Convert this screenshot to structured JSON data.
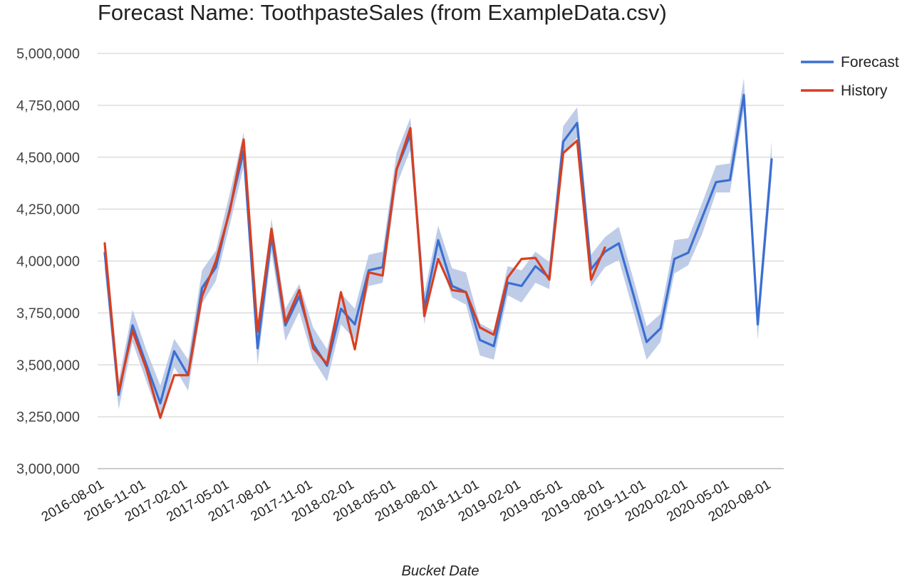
{
  "chart_data": {
    "type": "line",
    "title": "Forecast Name: ToothpasteSales (from ExampleData.csv)",
    "xlabel": "Bucket Date",
    "ylabel": "",
    "ylim": [
      3000000,
      5000000
    ],
    "yticks": [
      3000000,
      3250000,
      3500000,
      3750000,
      4000000,
      4250000,
      4500000,
      4750000,
      5000000
    ],
    "ytick_labels": [
      "3,000,000",
      "3,250,000",
      "3,500,000",
      "3,750,000",
      "4,000,000",
      "4,250,000",
      "4,500,000",
      "4,750,000",
      "5,000,000"
    ],
    "xtick_labels": [
      "2016-08-01",
      "2016-11-01",
      "2017-02-01",
      "2017-05-01",
      "2017-08-01",
      "2017-11-01",
      "2018-02-01",
      "2018-05-01",
      "2018-08-01",
      "2018-11-01",
      "2019-02-01",
      "2019-05-01",
      "2019-08-01",
      "2019-11-01",
      "2020-02-01",
      "2020-05-01",
      "2020-08-01"
    ],
    "x": [
      "2016-08-01",
      "2016-09-01",
      "2016-10-01",
      "2016-11-01",
      "2016-12-01",
      "2017-01-01",
      "2017-02-01",
      "2017-03-01",
      "2017-04-01",
      "2017-05-01",
      "2017-06-01",
      "2017-07-01",
      "2017-08-01",
      "2017-09-01",
      "2017-10-01",
      "2017-11-01",
      "2017-12-01",
      "2018-01-01",
      "2018-02-01",
      "2018-03-01",
      "2018-04-01",
      "2018-05-01",
      "2018-06-01",
      "2018-07-01",
      "2018-08-01",
      "2018-09-01",
      "2018-10-01",
      "2018-11-01",
      "2018-12-01",
      "2019-01-01",
      "2019-02-01",
      "2019-03-01",
      "2019-04-01",
      "2019-05-01",
      "2019-06-01",
      "2019-07-01",
      "2019-08-01",
      "2019-09-01",
      "2019-10-01",
      "2019-11-01",
      "2019-12-01",
      "2020-01-01",
      "2020-02-01",
      "2020-03-01",
      "2020-04-01",
      "2020-05-01",
      "2020-06-01",
      "2020-07-01",
      "2020-08-01"
    ],
    "series": [
      {
        "name": "Forecast",
        "color": "#3b6fd1",
        "values": [
          4040000,
          3355000,
          3690000,
          3500000,
          3315000,
          3565000,
          3450000,
          3870000,
          3970000,
          4250000,
          4530000,
          3580000,
          4120000,
          3690000,
          3830000,
          3600000,
          3495000,
          3770000,
          3695000,
          3955000,
          3970000,
          4440000,
          4610000,
          3770000,
          4100000,
          3880000,
          3850000,
          3620000,
          3590000,
          3895000,
          3880000,
          3975000,
          3920000,
          4575000,
          4665000,
          3960000,
          4045000,
          4085000,
          3850000,
          3610000,
          3675000,
          4010000,
          4040000,
          4210000,
          4380000,
          4390000,
          4800000,
          3695000,
          4490000
        ],
        "interval_lower": [
          3960000,
          3285000,
          3610000,
          3420000,
          3235000,
          3490000,
          3375000,
          3795000,
          3905000,
          4175000,
          4455000,
          3500000,
          4045000,
          3615000,
          3755000,
          3525000,
          3420000,
          3695000,
          3620000,
          3880000,
          3895000,
          4365000,
          4535000,
          3695000,
          4025000,
          3825000,
          3790000,
          3545000,
          3525000,
          3835000,
          3800000,
          3895000,
          3865000,
          4510000,
          4595000,
          3875000,
          3970000,
          4005000,
          3770000,
          3525000,
          3610000,
          3940000,
          3980000,
          4130000,
          4330000,
          4330000,
          4730000,
          3620000,
          4410000
        ],
        "interval_upper": [
          4110000,
          3420000,
          3765000,
          3570000,
          3400000,
          3625000,
          3525000,
          3955000,
          4050000,
          4325000,
          4620000,
          3655000,
          4205000,
          3770000,
          3890000,
          3680000,
          3575000,
          3845000,
          3770000,
          4030000,
          4045000,
          4520000,
          4690000,
          3845000,
          4170000,
          3965000,
          3945000,
          3700000,
          3665000,
          3975000,
          3955000,
          4045000,
          3995000,
          4650000,
          4740000,
          4030000,
          4115000,
          4165000,
          3925000,
          3685000,
          3745000,
          4100000,
          4110000,
          4280000,
          4460000,
          4470000,
          4880000,
          3770000,
          4575000
        ]
      },
      {
        "name": "History",
        "color": "#d93f1f",
        "values": [
          4085000,
          3370000,
          3665000,
          3480000,
          3245000,
          3450000,
          3450000,
          3830000,
          4000000,
          4240000,
          4585000,
          3660000,
          4155000,
          3705000,
          3860000,
          3580000,
          3505000,
          3850000,
          3575000,
          3945000,
          3930000,
          4440000,
          4640000,
          3735000,
          4010000,
          3860000,
          3850000,
          3680000,
          3645000,
          3920000,
          4010000,
          4015000,
          3910000,
          4520000,
          4580000,
          3910000,
          4065000,
          null,
          null,
          null,
          null,
          null,
          null,
          null,
          null,
          null,
          null,
          null,
          null
        ]
      }
    ],
    "legend": {
      "position": "top-right",
      "items": [
        "Forecast",
        "History"
      ]
    },
    "grid": true,
    "band_color": "#b3c3e4"
  }
}
